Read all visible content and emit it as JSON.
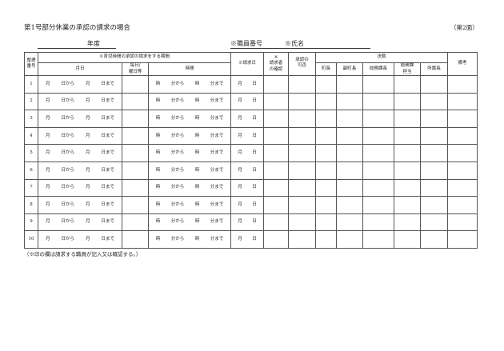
{
  "header": {
    "title": "第1号部分休業の承認の請求の場合",
    "page_no": "（第2面）",
    "year_label": "年度",
    "staff_no_label": "※職員番号",
    "name_label": "※氏名"
  },
  "table": {
    "headers": {
      "seq": "整理\n番号",
      "period_group": "※育児時間の承認の請求をする期間",
      "date": "月日",
      "weekday": "毎日/\n曜日等",
      "time": "時間",
      "request_date": "※請求日",
      "confirm": "※\n請求者\nの確認",
      "approval": "承認の\n可否",
      "decision_group": "決裁",
      "mayor": "町長",
      "deputy_mayor": "副町長",
      "general_affairs_chief": "総務課長",
      "general_affairs_staff": "総務課\n担当",
      "dept_head": "所属長",
      "remarks": "備考"
    },
    "row_template": {
      "date": [
        "月",
        "日から",
        "月",
        "日まで"
      ],
      "time": [
        "時",
        "分から",
        "時",
        "分まで"
      ],
      "request_date": [
        "月",
        "日"
      ]
    },
    "rows": [
      "1",
      "2",
      "3",
      "4",
      "5",
      "6",
      "7",
      "8",
      "9",
      "10"
    ]
  },
  "footnote": "（※印の欄は請求する職員が記入又は確認する。）"
}
